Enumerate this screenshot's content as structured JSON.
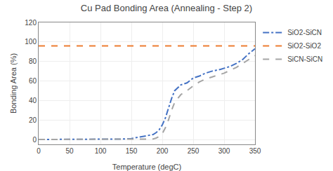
{
  "chart_data": {
    "type": "line",
    "title": "Cu Pad Bonding Area (Annealing - Step 2)",
    "xlabel": "Temperature (degC)",
    "ylabel": "Bonding Area (%)",
    "xlim": [
      0,
      350
    ],
    "ylim": [
      -5,
      120
    ],
    "xticks": [
      0,
      50,
      100,
      150,
      200,
      250,
      300,
      350
    ],
    "yticks": [
      0,
      20,
      40,
      60,
      80,
      100,
      120
    ],
    "grid": true,
    "series": [
      {
        "name": "SiO2-SiCN",
        "color": "#4472C4",
        "line_style": "dashdot",
        "x": [
          0,
          25,
          130,
          140,
          150,
          155,
          160,
          165,
          170,
          175,
          180,
          185,
          190,
          195,
          200,
          205,
          210,
          215,
          220,
          225,
          230,
          240,
          250,
          260,
          270,
          280,
          290,
          295,
          300,
          305,
          310,
          320,
          330,
          340,
          350
        ],
        "values": [
          0,
          0,
          0,
          0.5,
          1,
          1.5,
          2,
          2.5,
          3,
          3.5,
          4,
          5,
          7,
          10,
          15,
          22,
          32,
          42,
          50,
          53,
          56,
          58,
          63,
          65,
          68,
          70,
          71,
          72,
          73,
          74,
          75,
          78,
          82,
          88,
          93
        ]
      },
      {
        "name": "SiO2-SiO2",
        "color": "#ED7D31",
        "line_style": "dash",
        "x": [
          0,
          25,
          50,
          130,
          140,
          150,
          155,
          160,
          165,
          170,
          175,
          180,
          185,
          190,
          195,
          200,
          205,
          210,
          215,
          220,
          225,
          230,
          240,
          250,
          260,
          270,
          280,
          290,
          300,
          310,
          320,
          330,
          340,
          350
        ],
        "values": [
          96,
          96,
          96,
          96,
          96,
          96,
          96,
          96,
          96,
          96,
          96,
          96,
          96,
          96,
          96,
          96,
          96,
          96,
          96,
          96,
          96,
          96,
          96,
          96,
          96,
          96,
          96,
          96,
          96,
          96,
          96,
          96,
          96,
          96
        ]
      },
      {
        "name": "SiCN-SiCN",
        "color": "#A5A5A5",
        "line_style": "dash",
        "x": [
          0,
          25,
          130,
          140,
          150,
          155,
          160,
          165,
          170,
          175,
          180,
          185,
          190,
          195,
          200,
          205,
          210,
          215,
          220,
          225,
          230,
          240,
          250,
          260,
          270,
          280,
          290,
          300,
          310,
          320,
          330,
          340,
          350
        ],
        "values": [
          0,
          0,
          0,
          0,
          0,
          0,
          0,
          0,
          0,
          0,
          0,
          0.5,
          1.5,
          3,
          6,
          12,
          20,
          30,
          38,
          42,
          46,
          50,
          55,
          59,
          62,
          64,
          66,
          68,
          71,
          74,
          78,
          82,
          86
        ]
      }
    ]
  }
}
